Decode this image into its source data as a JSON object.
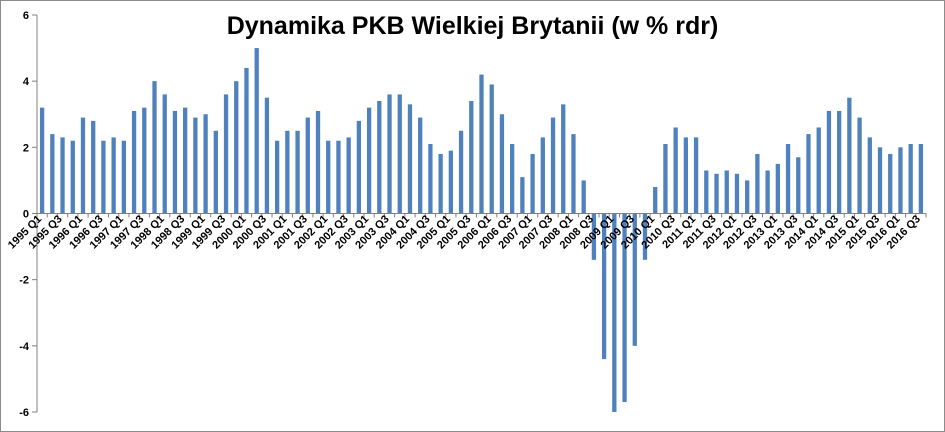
{
  "chart_data": {
    "type": "bar",
    "title": "Dynamika PKB Wielkiej Brytanii (w % rdr)",
    "xlabel": "",
    "ylabel": "",
    "ylim": [
      -6,
      6
    ],
    "yticks": [
      -6,
      -4,
      -2,
      0,
      2,
      4,
      6
    ],
    "grid": false,
    "legend": "none",
    "bar_color": "#4f81bd",
    "categories": [
      "1995 Q1",
      "1995 Q2",
      "1995 Q3",
      "1995 Q4",
      "1996 Q1",
      "1996 Q2",
      "1996 Q3",
      "1996 Q4",
      "1997 Q1",
      "1997 Q2",
      "1997 Q3",
      "1997 Q4",
      "1998 Q1",
      "1998 Q2",
      "1998 Q3",
      "1998 Q4",
      "1999 Q1",
      "1999 Q2",
      "1999 Q3",
      "1999 Q4",
      "2000 Q1",
      "2000 Q2",
      "2000 Q3",
      "2000 Q4",
      "2001 Q1",
      "2001 Q2",
      "2001 Q3",
      "2001 Q4",
      "2002 Q1",
      "2002 Q2",
      "2002 Q3",
      "2002 Q4",
      "2003 Q1",
      "2003 Q2",
      "2003 Q3",
      "2003 Q4",
      "2004 Q1",
      "2004 Q2",
      "2004 Q3",
      "2004 Q4",
      "2005 Q1",
      "2005 Q2",
      "2005 Q3",
      "2005 Q4",
      "2006 Q1",
      "2006 Q2",
      "2006 Q3",
      "2006 Q4",
      "2007 Q1",
      "2007 Q2",
      "2007 Q3",
      "2007 Q4",
      "2008 Q1",
      "2008 Q2",
      "2008 Q3",
      "2008 Q4",
      "2009 Q1",
      "2009 Q2",
      "2009 Q3",
      "2009 Q4",
      "2010 Q1",
      "2010 Q2",
      "2010 Q3",
      "2010 Q4",
      "2011 Q1",
      "2011 Q2",
      "2011 Q3",
      "2011 Q4",
      "2012 Q1",
      "2012 Q2",
      "2012 Q3",
      "2012 Q4",
      "2013 Q1",
      "2013 Q2",
      "2013 Q3",
      "2013 Q4",
      "2014 Q1",
      "2014 Q2",
      "2014 Q3",
      "2014 Q4",
      "2015 Q1",
      "2015 Q2",
      "2015 Q3",
      "2015 Q4",
      "2016 Q1",
      "2016 Q2",
      "2016 Q3"
    ],
    "values": [
      3.2,
      2.4,
      2.3,
      2.2,
      2.9,
      2.8,
      2.2,
      2.3,
      2.2,
      3.1,
      3.2,
      4.0,
      3.6,
      3.1,
      3.2,
      2.9,
      3.0,
      2.5,
      3.6,
      4.0,
      4.4,
      5.0,
      3.5,
      2.2,
      2.5,
      2.5,
      2.9,
      3.1,
      2.2,
      2.2,
      2.3,
      2.8,
      3.2,
      3.4,
      3.6,
      3.6,
      3.3,
      2.9,
      2.1,
      1.8,
      1.9,
      2.5,
      3.4,
      4.2,
      3.9,
      3.0,
      2.1,
      1.1,
      1.8,
      2.3,
      2.9,
      3.3,
      2.4,
      1.0,
      -1.4,
      -4.4,
      -6.0,
      -5.7,
      -4.0,
      -1.4,
      0.8,
      2.1,
      2.6,
      2.3,
      2.3,
      1.3,
      1.2,
      1.3,
      1.2,
      1.0,
      1.8,
      1.3,
      1.5,
      2.1,
      1.7,
      2.4,
      2.6,
      3.1,
      3.1,
      3.5,
      2.9,
      2.3,
      2.0,
      1.8,
      2.0,
      2.1,
      2.1
    ],
    "label_every": 2
  }
}
